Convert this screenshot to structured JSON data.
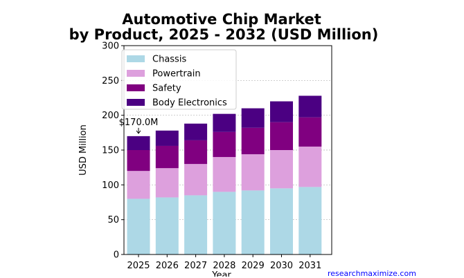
{
  "chart_data": {
    "type": "bar",
    "stacked": true,
    "title_lines": [
      "Automotive Chip Market",
      "by Product, 2025 - 2032 (USD Million)"
    ],
    "xlabel": "Year",
    "ylabel": "USD Million",
    "categories": [
      "2025",
      "2026",
      "2027",
      "2028",
      "2029",
      "2030",
      "2031"
    ],
    "series": [
      {
        "name": "Chassis",
        "color": "#add8e6",
        "values": [
          80,
          82,
          85,
          90,
          92,
          95,
          97
        ]
      },
      {
        "name": "Powertrain",
        "color": "#dda0dd",
        "values": [
          40,
          42,
          45,
          50,
          52,
          55,
          58
        ]
      },
      {
        "name": "Safety",
        "color": "#800080",
        "values": [
          30,
          32,
          34,
          36,
          38,
          40,
          42
        ]
      },
      {
        "name": "Body Electronics",
        "color": "#4b0082",
        "values": [
          20,
          22,
          24,
          26,
          28,
          30,
          31
        ]
      }
    ],
    "ylim": [
      0,
      300
    ],
    "yticks": [
      0,
      50,
      100,
      150,
      200,
      250,
      300
    ],
    "grid": "y-dashed",
    "legend_position": "upper-left",
    "annotation": {
      "text": "$170.0M",
      "category": "2025",
      "value": 170
    }
  },
  "source_text": "researchmaximize.com"
}
